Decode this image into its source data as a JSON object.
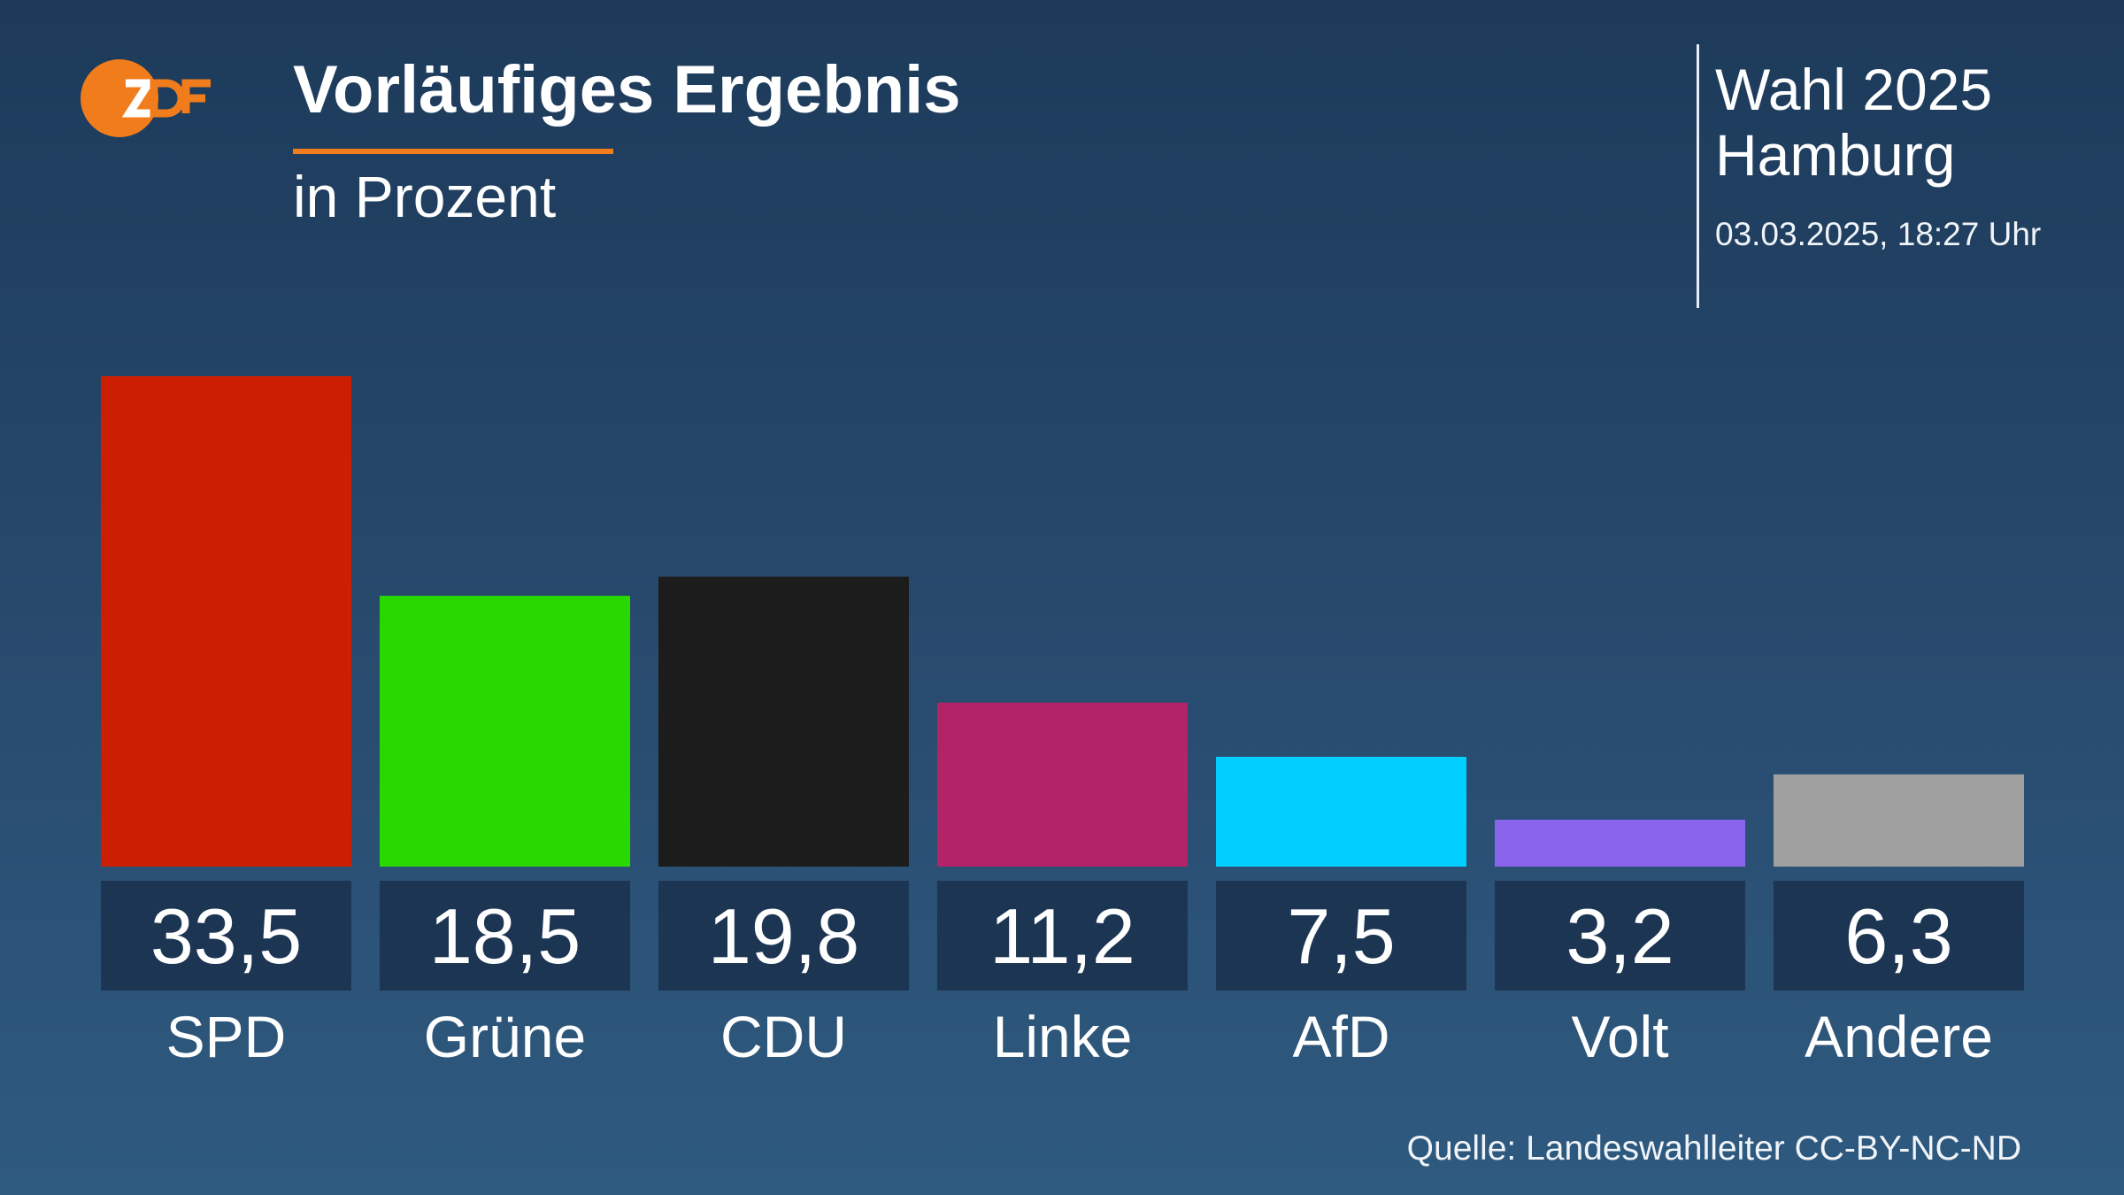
{
  "header": {
    "logo_text": "2DF",
    "title": "Vorläufiges Ergebnis",
    "subtitle": "in Prozent",
    "election_line1": "Wahl 2025",
    "election_line2": "Hamburg",
    "timestamp": "03.03.2025, 18:27 Uhr"
  },
  "footer": {
    "source": "Quelle: Landeswahlleiter CC-BY-NC-ND"
  },
  "colors": {
    "accent": "#f07c1b",
    "label_box": "#1c3553"
  },
  "chart_data": {
    "type": "bar",
    "title": "Vorläufiges Ergebnis",
    "subtitle": "in Prozent",
    "categories": [
      "SPD",
      "Grüne",
      "CDU",
      "Linke",
      "AfD",
      "Volt",
      "Andere"
    ],
    "values": [
      33.5,
      18.5,
      19.8,
      11.2,
      7.5,
      3.2,
      6.3
    ],
    "value_labels": [
      "33,5",
      "18,5",
      "19,8",
      "11,2",
      "7,5",
      "3,2",
      "6,3"
    ],
    "colors": [
      "#cc1e00",
      "#27d900",
      "#1c1c1c",
      "#b32367",
      "#00cfff",
      "#8b64ee",
      "#a0a0a0"
    ],
    "xlabel": "",
    "ylabel": "",
    "ylim": [
      0,
      33.5
    ],
    "grid": false,
    "legend": "none"
  }
}
